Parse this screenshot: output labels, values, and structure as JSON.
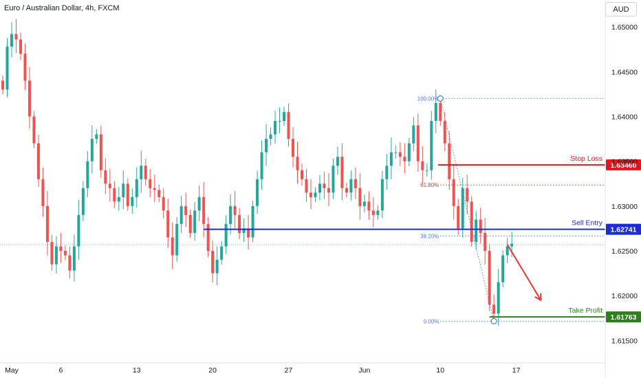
{
  "header": {
    "symbol": "Euro / Australian Dollar, 4h, FXCM",
    "currency": "AUD"
  },
  "colors": {
    "up": "#26a69a",
    "down": "#ef5350",
    "sell_entry": "#1b2dcc",
    "stop_loss": "#e8141c",
    "take_profit": "#2e7d1f",
    "fib": "#4a7ed8",
    "fib_618": "#a0522d",
    "arrow": "#e83535"
  },
  "chart_data": {
    "type": "candlestick",
    "title": "Euro / Australian Dollar, 4h, FXCM",
    "ylim": [
      1.6125,
      1.653
    ],
    "xlim": [
      0,
      134
    ],
    "y_ticks": [
      "1.61500",
      "1.62000",
      "1.62500",
      "1.63000",
      "1.63500",
      "1.64000",
      "1.64500",
      "1.65000"
    ],
    "x_ticks": [
      {
        "label": "May",
        "x": 2
      },
      {
        "label": "6",
        "x": 13
      },
      {
        "label": "13",
        "x": 30
      },
      {
        "label": "20",
        "x": 47
      },
      {
        "label": "27",
        "x": 64
      },
      {
        "label": "Jun",
        "x": 81
      },
      {
        "label": "10",
        "x": 98
      },
      {
        "label": "17",
        "x": 115
      }
    ],
    "close_series": [
      1.643,
      1.6478,
      1.6492,
      1.6486,
      1.647,
      1.644,
      1.64,
      1.637,
      1.633,
      1.63,
      1.626,
      1.6235,
      1.6255,
      1.625,
      1.6245,
      1.6228,
      1.6255,
      1.629,
      1.632,
      1.635,
      1.6375,
      1.638,
      1.634,
      1.6325,
      1.632,
      1.6305,
      1.631,
      1.6325,
      1.63,
      1.631,
      1.633,
      1.6345,
      1.633,
      1.632,
      1.6318,
      1.631,
      1.6295,
      1.6265,
      1.6245,
      1.628,
      1.63,
      1.629,
      1.627,
      1.6295,
      1.631,
      1.628,
      1.625,
      1.6225,
      1.624,
      1.6255,
      1.628,
      1.63,
      1.629,
      1.627,
      1.6275,
      1.6265,
      1.63,
      1.633,
      1.636,
      1.6375,
      1.638,
      1.6395,
      1.6395,
      1.6405,
      1.6375,
      1.6355,
      1.634,
      1.633,
      1.6315,
      1.631,
      1.6315,
      1.6325,
      1.632,
      1.6315,
      1.6345,
      1.6355,
      1.632,
      1.6315,
      1.633,
      1.632,
      1.63,
      1.6305,
      1.6295,
      1.629,
      1.6295,
      1.633,
      1.6345,
      1.636,
      1.636,
      1.6355,
      1.635,
      1.637,
      1.639,
      1.635,
      1.634,
      1.634,
      1.6395,
      1.6415,
      1.6395,
      1.637,
      1.633,
      1.63,
      1.6275,
      1.632,
      1.6305,
      1.626,
      1.6285,
      1.627,
      1.625,
      1.619,
      1.618,
      1.6215,
      1.6245,
      1.6255,
      1.6258
    ],
    "annotations": {
      "stop_loss": {
        "label": "Stop Loss",
        "value": 1.6346,
        "value_text": "1.63460"
      },
      "sell_entry": {
        "label": "Sell Entry",
        "value": 1.62741,
        "value_text": "1.62741"
      },
      "take_profit": {
        "label": "Take Profit",
        "value": 1.61763,
        "value_text": "1.61763"
      },
      "current_price": 1.6257
    },
    "fibonacci": [
      {
        "label": "100.00%",
        "value": 1.642
      },
      {
        "label": "61.80%",
        "value": 1.63235
      },
      {
        "label": "38.20%",
        "value": 1.62665
      },
      {
        "label": "0.00%",
        "value": 1.61715
      }
    ],
    "fib_anchor_high": {
      "x": 98,
      "y": 1.642
    },
    "fib_anchor_low": {
      "x": 110,
      "y": 1.61715
    }
  }
}
